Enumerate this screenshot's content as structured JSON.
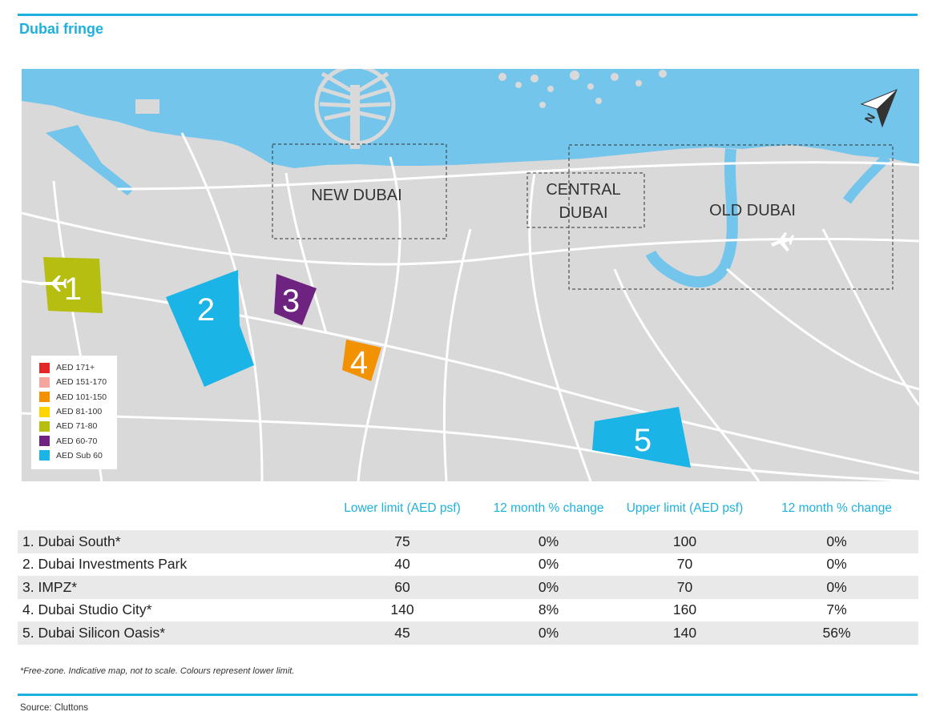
{
  "title": "Dubai fringe",
  "map": {
    "area_labels": {
      "new_dubai": "NEW DUBAI",
      "central_line1": "CENTRAL",
      "central_line2": "DUBAI",
      "old_dubai": "OLD DUBAI"
    },
    "zones": [
      {
        "number": "1",
        "color": "#b6be0f"
      },
      {
        "number": "2",
        "color": "#1ab4e6"
      },
      {
        "number": "3",
        "color": "#6f2381"
      },
      {
        "number": "4",
        "color": "#f39200"
      },
      {
        "number": "5",
        "color": "#1ab4e6"
      }
    ],
    "compass_letter": "N",
    "colors": {
      "land": "#d9d9da",
      "water": "#73c5ec",
      "roads": "#ffffff"
    }
  },
  "legend": [
    {
      "label": "AED 171+",
      "color": "#e32726"
    },
    {
      "label": "AED 151-170",
      "color": "#f4a5a0"
    },
    {
      "label": "AED 101-150",
      "color": "#f39200"
    },
    {
      "label": "AED 81-100",
      "color": "#fdd500"
    },
    {
      "label": "AED 71-80",
      "color": "#b6be0f"
    },
    {
      "label": "AED 60-70",
      "color": "#6f2381"
    },
    {
      "label": "AED Sub 60",
      "color": "#1ab4e6"
    }
  ],
  "table": {
    "headers": [
      "",
      "Lower limit (AED psf)",
      "12 month % change",
      "Upper limit (AED psf)",
      "12 month % change"
    ],
    "rows": [
      {
        "name": "1. Dubai South*",
        "lower": "75",
        "lower_change": "0%",
        "upper": "100",
        "upper_change": "0%"
      },
      {
        "name": "2. Dubai Investments Park",
        "lower": "40",
        "lower_change": "0%",
        "upper": "70",
        "upper_change": "0%"
      },
      {
        "name": "3. IMPZ*",
        "lower": "60",
        "lower_change": "0%",
        "upper": "70",
        "upper_change": "0%"
      },
      {
        "name": "4. Dubai Studio City*",
        "lower": "140",
        "lower_change": "8%",
        "upper": "160",
        "upper_change": "7%"
      },
      {
        "name": "5. Dubai Silicon Oasis*",
        "lower": "45",
        "lower_change": "0%",
        "upper": "140",
        "upper_change": "56%"
      }
    ]
  },
  "footnote": "*Free-zone.  Indicative map, not to scale. Colours represent lower limit.",
  "source": "Source: Cluttons"
}
